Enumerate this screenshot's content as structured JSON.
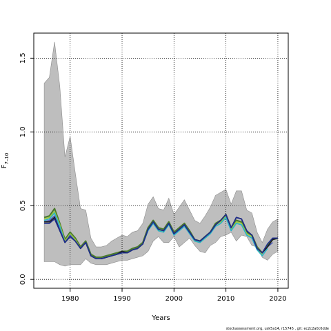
{
  "chart_data": {
    "type": "line",
    "title": "",
    "xlabel": "Years",
    "ylabel_main": "F",
    "ylabel_sub": "7–10",
    "xlim": [
      1973,
      2022
    ],
    "ylim": [
      -0.06,
      1.67
    ],
    "xticks": [
      1980,
      1990,
      2000,
      2010,
      2020
    ],
    "xtick_labels": [
      "1980",
      "1990",
      "2000",
      "2010",
      "2020"
    ],
    "yticks": [
      0.0,
      0.5,
      1.0,
      1.5
    ],
    "ytick_labels": [
      "0.0",
      "0.5",
      "1.0",
      "1.5"
    ],
    "grid": true,
    "grid_style": "dotted",
    "band": {
      "x": [
        1975,
        1976,
        1977,
        1978,
        1979,
        1980,
        1981,
        1982,
        1983,
        1984,
        1985,
        1986,
        1987,
        1988,
        1989,
        1990,
        1991,
        1992,
        1993,
        1994,
        1995,
        1996,
        1997,
        1998,
        1999,
        2000,
        2001,
        2002,
        2003,
        2004,
        2005,
        2006,
        2007,
        2008,
        2009,
        2010,
        2011,
        2012,
        2013,
        2014,
        2015,
        2016,
        2017,
        2018,
        2019,
        2020
      ],
      "upper": [
        1.33,
        1.37,
        1.61,
        1.31,
        0.83,
        0.97,
        0.72,
        0.48,
        0.47,
        0.28,
        0.22,
        0.22,
        0.23,
        0.26,
        0.28,
        0.3,
        0.29,
        0.32,
        0.33,
        0.38,
        0.51,
        0.56,
        0.48,
        0.47,
        0.55,
        0.44,
        0.49,
        0.54,
        0.47,
        0.4,
        0.38,
        0.43,
        0.49,
        0.57,
        0.59,
        0.61,
        0.51,
        0.6,
        0.6,
        0.47,
        0.45,
        0.32,
        0.25,
        0.34,
        0.39,
        0.41
      ],
      "lower": [
        0.12,
        0.12,
        0.12,
        0.1,
        0.09,
        0.1,
        0.1,
        0.1,
        0.14,
        0.11,
        0.1,
        0.1,
        0.1,
        0.11,
        0.12,
        0.13,
        0.13,
        0.14,
        0.15,
        0.16,
        0.19,
        0.26,
        0.29,
        0.25,
        0.25,
        0.29,
        0.22,
        0.25,
        0.28,
        0.23,
        0.19,
        0.18,
        0.23,
        0.25,
        0.29,
        0.3,
        0.32,
        0.26,
        0.3,
        0.29,
        0.23,
        0.22,
        0.15,
        0.13,
        0.17,
        0.19
      ]
    },
    "series": [
      {
        "color": "#4b7a2e",
        "values": [
          0.42,
          0.43,
          0.48,
          0.38,
          0.27,
          0.32,
          0.28,
          0.22,
          0.26,
          0.17,
          0.15,
          0.15,
          0.16,
          0.17,
          0.18,
          0.19,
          0.19,
          0.21,
          0.22,
          0.25,
          0.35,
          0.4,
          0.35,
          0.34,
          0.39,
          0.32,
          0.35,
          0.38,
          0.33,
          0.27,
          0.26,
          0.29,
          0.32,
          0.38,
          0.4,
          0.44,
          0.35,
          0.4,
          0.39,
          0.32,
          0.3,
          0.22,
          0.18,
          0.23,
          0.27,
          0.28
        ]
      },
      {
        "color": "#9ecb3a",
        "values": [
          0.41,
          0.42,
          0.46,
          0.37,
          0.26,
          0.31,
          0.27,
          0.21,
          0.25,
          0.16,
          0.14,
          0.14,
          0.15,
          0.16,
          0.17,
          0.18,
          0.18,
          0.2,
          0.21,
          0.24,
          0.34,
          0.39,
          0.33,
          0.33,
          0.38,
          0.31,
          0.34,
          0.37,
          0.32,
          0.26,
          0.25,
          0.28,
          0.31,
          0.37,
          0.39,
          0.43,
          0.34,
          0.39,
          0.38,
          0.31,
          0.29,
          0.21,
          0.17,
          null,
          null,
          null
        ]
      },
      {
        "color": "#29b3c9",
        "values": [
          0.4,
          0.41,
          0.45,
          0.36,
          0.25,
          0.3,
          0.26,
          0.21,
          0.25,
          0.16,
          0.14,
          0.14,
          0.15,
          0.16,
          0.17,
          0.18,
          0.18,
          0.2,
          0.21,
          0.24,
          0.33,
          0.38,
          0.33,
          0.32,
          0.37,
          0.3,
          0.33,
          0.36,
          0.31,
          0.26,
          0.25,
          0.28,
          0.31,
          0.36,
          0.38,
          0.42,
          0.33,
          0.38,
          0.37,
          0.3,
          0.28,
          0.2,
          0.16,
          0.21,
          null,
          null
        ]
      },
      {
        "color": "#4a5ab8",
        "values": [
          0.39,
          0.4,
          0.43,
          0.34,
          0.25,
          0.3,
          0.26,
          0.21,
          0.25,
          0.16,
          0.14,
          0.14,
          0.15,
          0.16,
          0.17,
          0.19,
          0.18,
          0.2,
          0.21,
          0.24,
          0.34,
          0.39,
          0.34,
          0.33,
          0.38,
          0.31,
          0.34,
          0.37,
          0.32,
          0.27,
          0.26,
          0.29,
          0.32,
          0.37,
          0.4,
          0.44,
          0.35,
          0.42,
          0.41,
          0.33,
          0.3,
          0.21,
          0.18,
          0.22,
          0.25,
          null
        ]
      },
      {
        "color": "#1a1a1a",
        "values": [
          0.39,
          0.39,
          0.42,
          0.33,
          0.25,
          0.29,
          0.26,
          0.21,
          0.25,
          0.16,
          0.14,
          0.14,
          0.15,
          0.16,
          0.17,
          0.19,
          0.18,
          0.2,
          0.21,
          0.24,
          0.34,
          0.39,
          0.34,
          0.33,
          0.38,
          0.31,
          0.34,
          0.37,
          0.32,
          0.27,
          0.26,
          0.29,
          0.32,
          0.37,
          0.4,
          0.44,
          0.35,
          0.42,
          0.41,
          0.33,
          0.3,
          0.21,
          0.18,
          0.22,
          0.27,
          0.28
        ]
      },
      {
        "color": "#1f2d8c",
        "values": [
          0.38,
          0.38,
          0.41,
          0.33,
          0.25,
          0.29,
          0.26,
          0.21,
          0.25,
          0.16,
          0.14,
          0.14,
          0.15,
          0.16,
          0.17,
          0.18,
          0.18,
          0.2,
          0.21,
          0.24,
          0.34,
          0.39,
          0.34,
          0.33,
          0.38,
          0.31,
          0.34,
          0.37,
          0.32,
          0.27,
          0.26,
          0.29,
          0.32,
          0.37,
          0.4,
          0.44,
          0.35,
          0.42,
          0.41,
          0.33,
          0.3,
          0.21,
          0.18,
          0.24,
          0.28,
          0.28
        ]
      }
    ]
  },
  "footer": "stockassessment.org, usk5a14, r15745 , git: ec2c2a0c6dde"
}
